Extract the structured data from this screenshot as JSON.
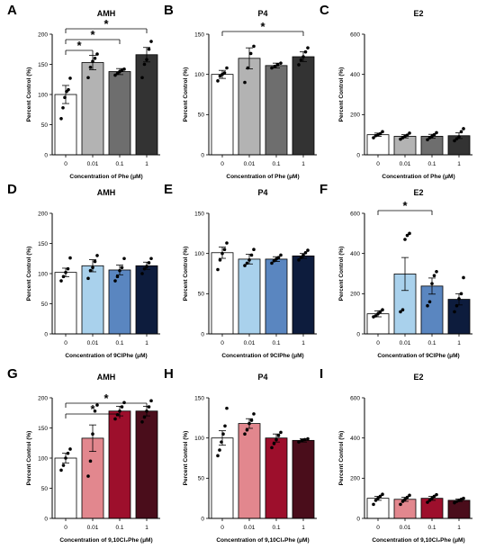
{
  "chart_data": [
    {
      "type": "bar",
      "letter": "A",
      "title": "AMH",
      "xlabel": "Concentration of Phe (μM)",
      "ylabel": "Percent Control (%)",
      "categories": [
        "0",
        "0.01",
        "0.1",
        "1"
      ],
      "ylim": [
        0,
        200
      ],
      "yticks": [
        "0",
        "50",
        "100",
        "150",
        "200"
      ],
      "values": [
        100,
        153,
        138,
        166
      ],
      "errors": [
        15,
        12,
        5,
        12
      ],
      "points": [
        [
          60,
          78,
          95,
          105,
          108,
          127
        ],
        [
          128,
          145,
          155,
          160,
          167
        ],
        [
          132,
          135,
          138,
          140,
          142
        ],
        [
          128,
          150,
          158,
          175,
          188
        ]
      ],
      "fills": [
        "#ffffff",
        "#b3b3b3",
        "#6e6e6e",
        "#333333"
      ],
      "significance": [
        {
          "from": 0,
          "to": 1,
          "label": "*"
        },
        {
          "from": 0,
          "to": 2,
          "label": "*"
        },
        {
          "from": 0,
          "to": 3,
          "label": "*"
        }
      ]
    },
    {
      "type": "bar",
      "letter": "B",
      "title": "P4",
      "xlabel": "Concentration of Phe (μM)",
      "ylabel": "Percent Control (%)",
      "categories": [
        "0",
        "0.01",
        "0.1",
        "1"
      ],
      "ylim": [
        0,
        150
      ],
      "yticks": [
        "0",
        "50",
        "100",
        "150"
      ],
      "values": [
        100,
        120,
        111,
        122
      ],
      "errors": [
        5,
        13,
        3,
        6
      ],
      "points": [
        [
          92,
          98,
          100,
          102,
          108
        ],
        [
          90,
          108,
          126,
          135
        ],
        [
          108,
          110,
          112,
          114
        ],
        [
          112,
          118,
          122,
          128,
          133
        ]
      ],
      "fills": [
        "#ffffff",
        "#b3b3b3",
        "#6e6e6e",
        "#333333"
      ],
      "significance": [
        {
          "from": 0,
          "to": 3,
          "label": "*"
        }
      ]
    },
    {
      "type": "bar",
      "letter": "C",
      "title": "E2",
      "xlabel": "Concentration of Phe (μM)",
      "ylabel": "Percent Control (%)",
      "categories": [
        "0",
        "0.01",
        "0.1",
        "1"
      ],
      "ylim": [
        0,
        600
      ],
      "yticks": [
        "0",
        "200",
        "400",
        "600"
      ],
      "values": [
        100,
        92,
        92,
        95
      ],
      "errors": [
        8,
        8,
        10,
        14
      ],
      "points": [
        [
          85,
          95,
          100,
          105,
          115
        ],
        [
          78,
          85,
          92,
          98,
          108
        ],
        [
          75,
          85,
          92,
          100,
          110
        ],
        [
          70,
          80,
          90,
          115,
          130
        ]
      ],
      "fills": [
        "#ffffff",
        "#b3b3b3",
        "#6e6e6e",
        "#333333"
      ],
      "significance": []
    },
    {
      "type": "bar",
      "letter": "D",
      "title": "AMH",
      "xlabel": "Concentration of 9ClPhe (μM)",
      "ylabel": "Percent Control (%)",
      "categories": [
        "0",
        "0.01",
        "0.1",
        "1"
      ],
      "ylim": [
        0,
        200
      ],
      "yticks": [
        "0",
        "50",
        "100",
        "150",
        "200"
      ],
      "values": [
        102,
        113,
        106,
        113
      ],
      "errors": [
        7,
        10,
        8,
        6
      ],
      "points": [
        [
          88,
          95,
          102,
          108,
          126
        ],
        [
          92,
          105,
          110,
          120,
          130
        ],
        [
          88,
          95,
          105,
          110,
          125
        ],
        [
          100,
          108,
          112,
          118,
          125
        ]
      ],
      "fills": [
        "#ffffff",
        "#a9d1ec",
        "#5a86c0",
        "#0d1c3d"
      ],
      "significance": []
    },
    {
      "type": "bar",
      "letter": "E",
      "title": "P4",
      "xlabel": "Concentration of 9ClPhe (μM)",
      "ylabel": "Percent Control (%)",
      "categories": [
        "0",
        "0.01",
        "0.1",
        "1"
      ],
      "ylim": [
        0,
        150
      ],
      "yticks": [
        "0",
        "50",
        "100",
        "150"
      ],
      "values": [
        101,
        93,
        93,
        97
      ],
      "errors": [
        7,
        6,
        3,
        3
      ],
      "points": [
        [
          80,
          92,
          100,
          105,
          113
        ],
        [
          85,
          88,
          92,
          98,
          105
        ],
        [
          88,
          91,
          93,
          95,
          98
        ],
        [
          92,
          95,
          98,
          101,
          104
        ]
      ],
      "fills": [
        "#ffffff",
        "#a9d1ec",
        "#5a86c0",
        "#0d1c3d"
      ],
      "significance": []
    },
    {
      "type": "bar",
      "letter": "F",
      "title": "E2",
      "xlabel": "Concentration of 9ClPhe (μM)",
      "ylabel": "Percent Control (%)",
      "categories": [
        "0",
        "0.01",
        "0.1",
        "1"
      ],
      "ylim": [
        0,
        600
      ],
      "yticks": [
        "0",
        "200",
        "400",
        "600"
      ],
      "values": [
        100,
        298,
        238,
        172
      ],
      "errors": [
        15,
        82,
        40,
        28
      ],
      "points": [
        [
          85,
          90,
          100,
          110,
          120
        ],
        [
          110,
          120,
          470,
          490,
          500
        ],
        [
          140,
          160,
          250,
          290,
          310
        ],
        [
          110,
          140,
          175,
          200,
          280
        ]
      ],
      "fills": [
        "#ffffff",
        "#a9d1ec",
        "#5a86c0",
        "#0d1c3d"
      ],
      "significance": [
        {
          "from": 0,
          "to": 2,
          "label": "*"
        }
      ]
    },
    {
      "type": "bar",
      "letter": "G",
      "title": "AMH",
      "xlabel": "Concentration of 9,10Cl₂Phe (μM)",
      "ylabel": "Percent Control (%)",
      "categories": [
        "0",
        "0.01",
        "0.1",
        "1"
      ],
      "ylim": [
        0,
        200
      ],
      "yticks": [
        "0",
        "50",
        "100",
        "150",
        "200"
      ],
      "values": [
        100,
        133,
        178,
        178
      ],
      "errors": [
        8,
        22,
        8,
        8
      ],
      "points": [
        [
          80,
          88,
          100,
          108,
          115
        ],
        [
          70,
          95,
          140,
          178,
          188
        ],
        [
          165,
          172,
          178,
          185,
          192
        ],
        [
          160,
          168,
          178,
          185,
          195
        ]
      ],
      "fills": [
        "#ffffff",
        "#e2878e",
        "#9d0f2c",
        "#4a0d1b"
      ],
      "significance": [
        {
          "from": 0,
          "to": 2,
          "label": "*"
        },
        {
          "from": 0,
          "to": 3,
          "label": "*"
        }
      ]
    },
    {
      "type": "bar",
      "letter": "H",
      "title": "P4",
      "xlabel": "Concentration of 9,10Cl₂Phe (μM)",
      "ylabel": "Percent Control (%)",
      "categories": [
        "0",
        "0.01",
        "0.1",
        "1"
      ],
      "ylim": [
        0,
        150
      ],
      "yticks": [
        "0",
        "50",
        "100",
        "150"
      ],
      "values": [
        100,
        118,
        100,
        97
      ],
      "errors": [
        9,
        6,
        5,
        2
      ],
      "points": [
        [
          78,
          85,
          95,
          105,
          115,
          137
        ],
        [
          105,
          110,
          118,
          122,
          130
        ],
        [
          88,
          93,
          98,
          103,
          107
        ],
        [
          95,
          97,
          98,
          99
        ]
      ],
      "fills": [
        "#ffffff",
        "#e2878e",
        "#9d0f2c",
        "#4a0d1b"
      ],
      "significance": []
    },
    {
      "type": "bar",
      "letter": "I",
      "title": "E2",
      "xlabel": "Concentration of 9,10Cl₂Phe (μM)",
      "ylabel": "Percent Control (%)",
      "categories": [
        "0",
        "0.01",
        "0.1",
        "1"
      ],
      "ylim": [
        0,
        600
      ],
      "yticks": [
        "0",
        "200",
        "400",
        "600"
      ],
      "values": [
        100,
        95,
        100,
        90
      ],
      "errors": [
        10,
        10,
        10,
        6
      ],
      "points": [
        [
          70,
          90,
          100,
          110,
          120
        ],
        [
          70,
          85,
          95,
          105,
          115
        ],
        [
          80,
          90,
          100,
          110,
          118
        ],
        [
          78,
          85,
          90,
          95,
          100
        ]
      ],
      "fills": [
        "#ffffff",
        "#e2878e",
        "#9d0f2c",
        "#4a0d1b"
      ],
      "significance": []
    }
  ]
}
